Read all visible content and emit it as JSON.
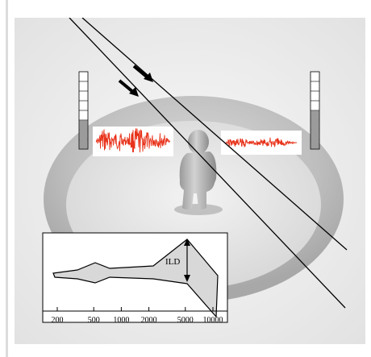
{
  "figure": {
    "ild_label": "ILD",
    "x_ticks": [
      "200",
      "500",
      "1000",
      "2000",
      "5000",
      "10000"
    ]
  },
  "chart_data": {
    "type": "area",
    "x": [
      200,
      500,
      1000,
      2000,
      5000,
      10000
    ],
    "xscale": "log",
    "xlabel": "",
    "ylabel": "",
    "annotations": [
      "ILD"
    ]
  },
  "colors": {
    "waveform": "#e8321a",
    "ild_area": "#d8d8d8"
  }
}
